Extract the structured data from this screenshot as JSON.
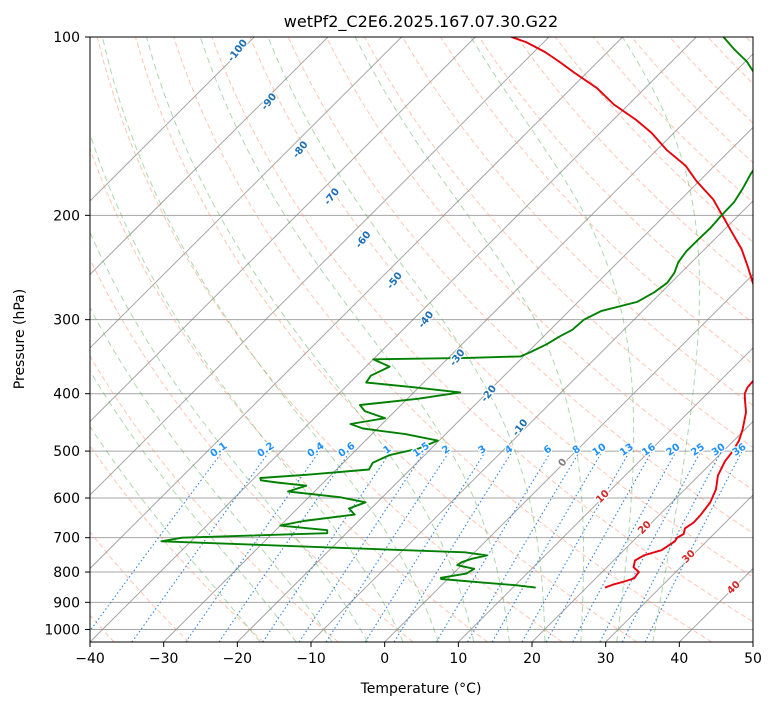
{
  "chart_data": {
    "type": "line",
    "subtype": "skew-t log-p",
    "title": "wetPf2_C2E6.2025.167.07.30.G22",
    "xlabel": "Temperature (°C)",
    "ylabel": "Pressure (hPa)",
    "xlim": [
      -40,
      50
    ],
    "ylim": [
      1050,
      100
    ],
    "y_scale": "log",
    "x_ticks": [
      -40,
      -30,
      -20,
      -10,
      0,
      10,
      20,
      30,
      40,
      50
    ],
    "y_ticks": [
      100,
      200,
      300,
      400,
      500,
      600,
      700,
      800,
      900,
      1000
    ],
    "grid": true,
    "colors": {
      "temperature": "#e8000b",
      "dewpoint": "#008000",
      "isotherm": "#7f7f7f",
      "dry_adiabat": "#ff8c66",
      "moist_adiabat": "#4ca64c",
      "mixing_ratio": "#1f77d4",
      "dry_label": "#d62728",
      "moist_label": "#1f6fb4",
      "mix_label": "#1e90ff"
    },
    "series": [
      {
        "name": "Temperature",
        "points": [
          [
            22.5,
            850
          ],
          [
            23.2,
            840
          ],
          [
            24.3,
            830
          ],
          [
            25.2,
            820
          ],
          [
            25.0,
            800
          ],
          [
            23.6,
            785
          ],
          [
            22.9,
            765
          ],
          [
            23.4,
            750
          ],
          [
            25.1,
            735
          ],
          [
            25.7,
            710
          ],
          [
            25.5,
            700
          ],
          [
            25.9,
            690
          ],
          [
            25.3,
            675
          ],
          [
            25.7,
            660
          ],
          [
            25.6,
            640
          ],
          [
            25.2,
            610
          ],
          [
            24.2,
            580
          ],
          [
            22.6,
            550
          ],
          [
            21.6,
            520
          ],
          [
            21.3,
            500
          ],
          [
            20.7,
            480
          ],
          [
            19.7,
            460
          ],
          [
            17.8,
            430
          ],
          [
            16.0,
            410
          ],
          [
            15.1,
            400
          ],
          [
            14.6,
            390
          ],
          [
            14.5,
            380
          ],
          [
            14.8,
            365
          ],
          [
            13.8,
            350
          ],
          [
            11.5,
            330
          ],
          [
            9.4,
            310
          ],
          [
            7.0,
            295
          ],
          [
            4.6,
            280
          ],
          [
            2.0,
            265
          ],
          [
            -1.6,
            245
          ],
          [
            -5.0,
            228
          ],
          [
            -8.5,
            214
          ],
          [
            -12.2,
            200
          ],
          [
            -15.6,
            188
          ],
          [
            -20.4,
            175
          ],
          [
            -23.9,
            165
          ],
          [
            -28.7,
            155
          ],
          [
            -33.1,
            145
          ],
          [
            -36.9,
            138
          ],
          [
            -42.0,
            130
          ],
          [
            -46.5,
            122
          ],
          [
            -51.6,
            115
          ],
          [
            -55.3,
            110
          ],
          [
            -58.5,
            106
          ],
          [
            -62.4,
            102
          ],
          [
            -65.1,
            100
          ]
        ]
      },
      {
        "name": "Dewpoint",
        "points": [
          [
            13.1,
            850
          ],
          [
            10.0,
            842
          ],
          [
            5.0,
            833
          ],
          [
            -0.9,
            822
          ],
          [
            -1.1,
            818
          ],
          [
            1.8,
            805
          ],
          [
            2.2,
            790
          ],
          [
            -0.6,
            779
          ],
          [
            -0.4,
            770
          ],
          [
            0.5,
            760
          ],
          [
            2.1,
            750
          ],
          [
            -1.3,
            741
          ],
          [
            -19.0,
            728
          ],
          [
            -44.0,
            710
          ],
          [
            -41.7,
            700
          ],
          [
            -22.6,
            688
          ],
          [
            -23.0,
            680
          ],
          [
            -30.0,
            668
          ],
          [
            -27.5,
            656
          ],
          [
            -21.4,
            640
          ],
          [
            -23.0,
            625
          ],
          [
            -21.6,
            610
          ],
          [
            -25.8,
            598
          ],
          [
            -33.6,
            585
          ],
          [
            -31.9,
            572
          ],
          [
            -36.3,
            565
          ],
          [
            -38.8,
            560
          ],
          [
            -39.2,
            555
          ],
          [
            -33.2,
            548
          ],
          [
            -25.6,
            537
          ],
          [
            -26.0,
            523
          ],
          [
            -24.8,
            508
          ],
          [
            -21.7,
            495
          ],
          [
            -20.2,
            480
          ],
          [
            -25.5,
            468
          ],
          [
            -32.0,
            458
          ],
          [
            -34.3,
            450
          ],
          [
            -30.4,
            440
          ],
          [
            -34.1,
            428
          ],
          [
            -35.6,
            418
          ],
          [
            -28.6,
            408
          ],
          [
            -23.7,
            398
          ],
          [
            -30.8,
            390
          ],
          [
            -37.8,
            383
          ],
          [
            -38.1,
            373
          ],
          [
            -36.8,
            360
          ],
          [
            -40.0,
            350
          ],
          [
            -27.4,
            348
          ],
          [
            -20.4,
            346
          ],
          [
            -19.6,
            340
          ],
          [
            -18.5,
            330
          ],
          [
            -17.8,
            320
          ],
          [
            -17.0,
            312
          ],
          [
            -16.8,
            300
          ],
          [
            -15.6,
            290
          ],
          [
            -12.0,
            280
          ],
          [
            -11.0,
            270
          ],
          [
            -10.5,
            260
          ],
          [
            -10.9,
            250
          ],
          [
            -11.8,
            240
          ],
          [
            -12.2,
            230
          ],
          [
            -12.2,
            220
          ],
          [
            -12.1,
            210
          ],
          [
            -12.3,
            200
          ],
          [
            -12.4,
            190
          ],
          [
            -13.1,
            180
          ],
          [
            -14.0,
            170
          ],
          [
            -14.7,
            160
          ],
          [
            -15.5,
            150
          ],
          [
            -17.2,
            140
          ],
          [
            -20.5,
            130
          ],
          [
            -24.8,
            120
          ],
          [
            -29.8,
            110
          ],
          [
            -33.1,
            105
          ],
          [
            -36.3,
            100
          ]
        ]
      }
    ],
    "reference_lines": {
      "isotherms_c": [
        -100,
        -90,
        -80,
        -70,
        -60,
        -50,
        -40,
        -30,
        -20,
        -10,
        0,
        10,
        20,
        30,
        40,
        50
      ],
      "dry_adiabats_c": [
        -40,
        -30,
        -20,
        -10,
        0,
        10,
        20,
        30,
        40,
        50,
        60,
        70,
        80,
        90,
        100,
        110,
        120,
        130,
        140,
        150,
        160,
        170,
        180,
        190,
        200
      ],
      "moist_adiabats_c": [
        -20,
        -15,
        -10,
        -5,
        0,
        5,
        10,
        15,
        20,
        25,
        30,
        35
      ],
      "mixing_ratios_g_kg": [
        0.1,
        0.2,
        0.4,
        0.6,
        1,
        1.5,
        2,
        3,
        4,
        6,
        8,
        10,
        13,
        16,
        20,
        25,
        30,
        36
      ]
    },
    "annotations": {
      "moist_adiabat_labels": [
        "-100",
        "-90",
        "-80",
        "-70",
        "-60",
        "-50",
        "-40",
        "-30",
        "-20",
        "-10"
      ],
      "zero_label": "0",
      "dry_adiabat_labels": [
        "10",
        "20",
        "30",
        "40"
      ],
      "mixing_ratio_labels": [
        "0.1",
        "0.2",
        "0.4",
        "0.6",
        "1",
        "1.5",
        "2",
        "3",
        "4",
        "6",
        "8",
        "10",
        "13",
        "16",
        "20",
        "25",
        "30",
        "36"
      ]
    }
  }
}
